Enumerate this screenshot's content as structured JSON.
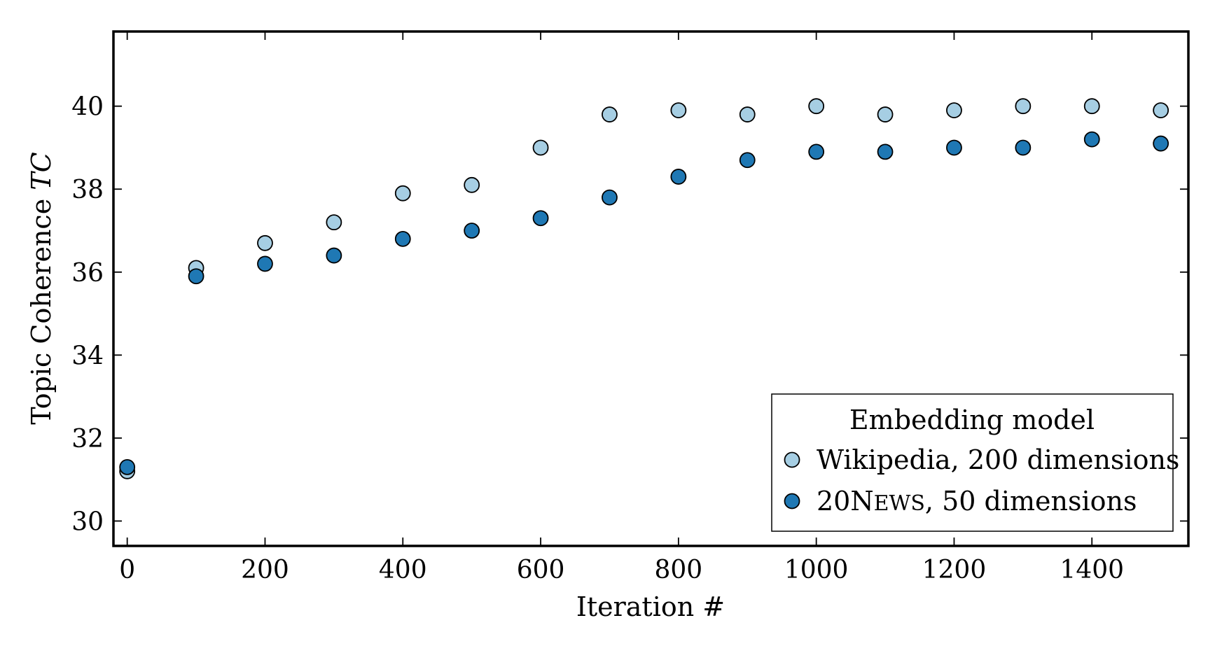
{
  "chart_data": {
    "type": "scatter",
    "title": "",
    "xlabel": "Iteration #",
    "ylabel_text": "Topic Coherence ",
    "ylabel_var": "TC",
    "xlim": [
      -20,
      1540
    ],
    "ylim": [
      29.4,
      41.8
    ],
    "xticks": [
      0,
      200,
      400,
      600,
      800,
      1000,
      1200,
      1400
    ],
    "yticks": [
      30,
      32,
      34,
      36,
      38,
      40
    ],
    "grid": false,
    "legend": {
      "title": "Embedding model",
      "placement": "lower-right"
    },
    "x": [
      0,
      100,
      200,
      300,
      400,
      500,
      600,
      700,
      800,
      900,
      1000,
      1100,
      1200,
      1300,
      1400,
      1500
    ],
    "series": [
      {
        "name": "Wikipedia, 200 dimensions",
        "color": "#a6cee3",
        "values": [
          31.2,
          36.1,
          36.7,
          37.2,
          37.9,
          38.1,
          39.0,
          39.8,
          39.9,
          39.8,
          40.0,
          39.8,
          39.9,
          40.0,
          40.0,
          39.9
        ]
      },
      {
        "name_prefix": "20",
        "name_cap": "N",
        "name_smallcaps": "EWS",
        "name_suffix": ", 50 dimensions",
        "color": "#1f78b4",
        "values": [
          31.3,
          35.9,
          36.2,
          36.4,
          36.8,
          37.0,
          37.3,
          37.8,
          38.3,
          38.7,
          38.9,
          38.9,
          39.0,
          39.0,
          39.2,
          39.1
        ]
      }
    ]
  }
}
